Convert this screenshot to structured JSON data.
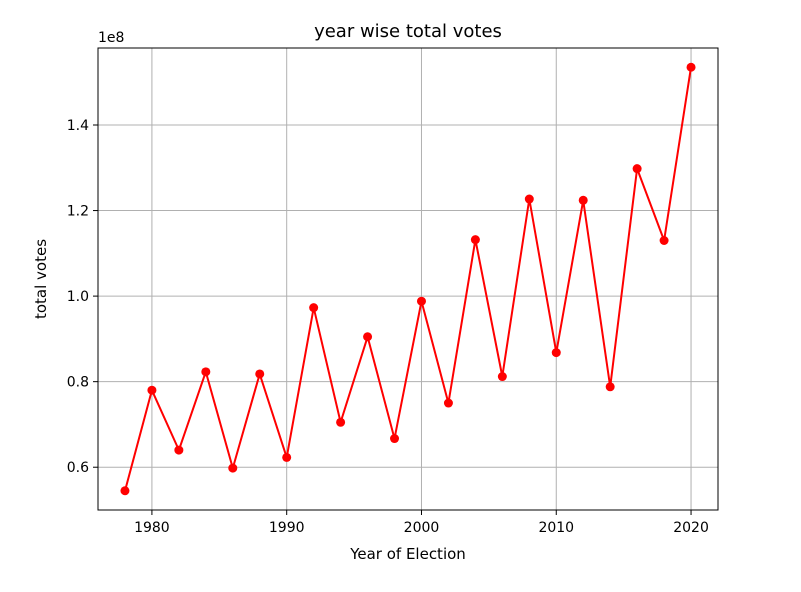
{
  "chart_data": {
    "type": "line",
    "title": "year wise total votes",
    "xlabel": "Year of Election",
    "ylabel": "total votes",
    "y_offset_label": "1e8",
    "xlim": [
      1976,
      2022
    ],
    "ylim": [
      0.5,
      1.58
    ],
    "xticks": [
      1980,
      1990,
      2000,
      2010,
      2020
    ],
    "yticks": [
      0.6,
      0.8,
      1.0,
      1.2,
      1.4
    ],
    "xtick_labels": [
      "1980",
      "1990",
      "2000",
      "2010",
      "2020"
    ],
    "ytick_labels": [
      "0.6",
      "0.8",
      "1.0",
      "1.2",
      "1.4"
    ],
    "grid": true,
    "series": [
      {
        "color": "#ff0000",
        "marker": "circle",
        "x": [
          1978,
          1980,
          1982,
          1984,
          1986,
          1988,
          1990,
          1992,
          1994,
          1996,
          1998,
          2000,
          2002,
          2004,
          2006,
          2008,
          2010,
          2012,
          2014,
          2016,
          2018,
          2020
        ],
        "y": [
          0.545,
          0.78,
          0.64,
          0.823,
          0.598,
          0.818,
          0.623,
          0.973,
          0.705,
          0.905,
          0.667,
          0.988,
          0.75,
          1.132,
          0.812,
          1.227,
          0.868,
          1.224,
          0.788,
          1.298,
          1.13,
          1.535
        ]
      }
    ]
  }
}
